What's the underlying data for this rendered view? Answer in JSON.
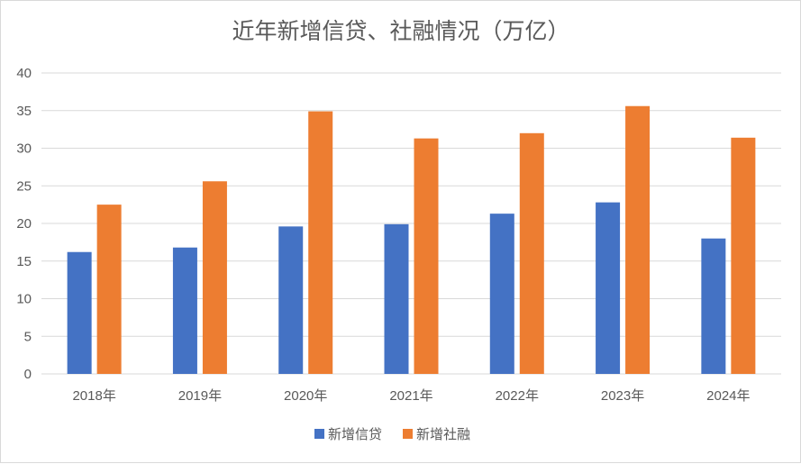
{
  "chart_data": {
    "type": "bar",
    "title": "近年新增信贷、社融情况（万亿）",
    "categories": [
      "2018年",
      "2019年",
      "2020年",
      "2021年",
      "2022年",
      "2023年",
      "2024年"
    ],
    "series": [
      {
        "name": "新增信贷",
        "color": "#4472C4",
        "values": [
          16.2,
          16.8,
          19.6,
          19.9,
          21.3,
          22.8,
          18.0
        ]
      },
      {
        "name": "新增社融",
        "color": "#ED7D31",
        "values": [
          22.5,
          25.6,
          34.9,
          31.3,
          32.0,
          35.6,
          31.4
        ]
      }
    ],
    "ylim": [
      0,
      40
    ],
    "yticks": [
      0,
      5,
      10,
      15,
      20,
      25,
      30,
      35,
      40
    ],
    "grid": true,
    "legend_position": "bottom"
  }
}
